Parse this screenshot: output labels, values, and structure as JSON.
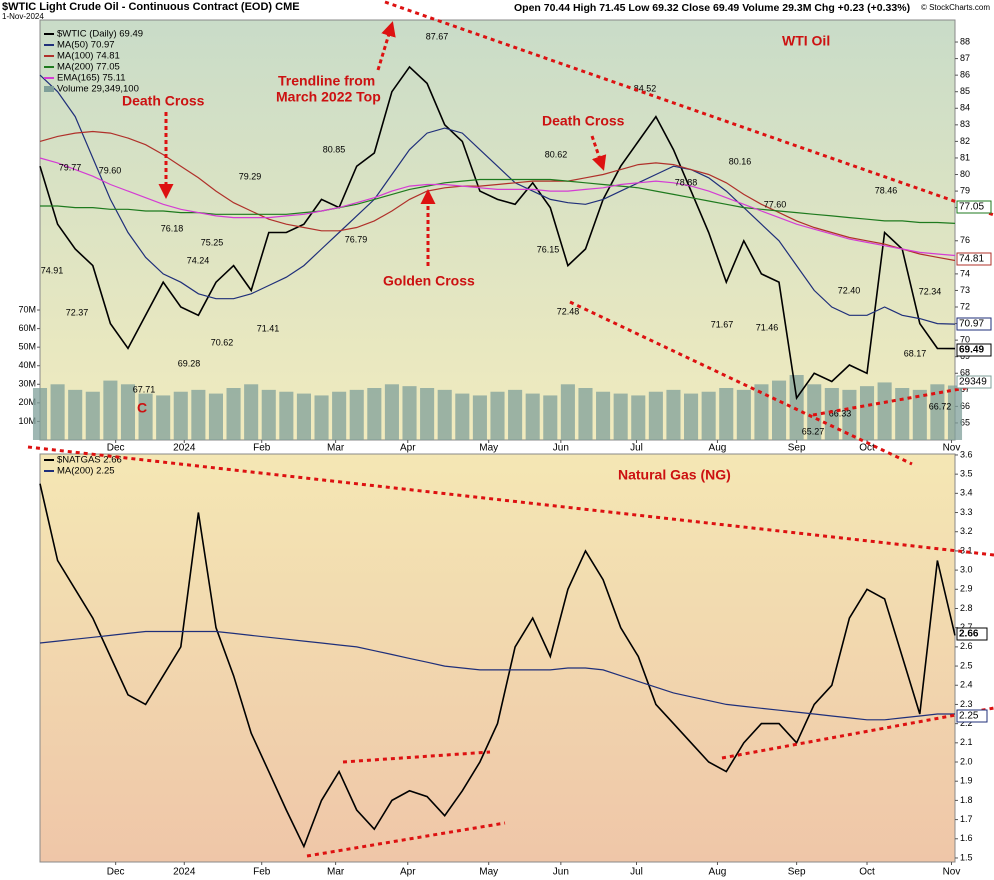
{
  "header": {
    "title": "$WTIC Light Crude Oil - Continuous Contract (EOD) CME",
    "date": "1-Nov-2024",
    "quote": "Open 70.44 High 71.45 Low 69.32 Close 69.49 Volume 29.3M Chg +0.23 (+0.33%)",
    "copyright": "© StockCharts.com"
  },
  "chart_data": [
    {
      "type": "line",
      "title": "WTI Oil",
      "xlim": [
        0,
        52
      ],
      "xticks": [
        {
          "value": 4.3,
          "label": "Dec"
        },
        {
          "value": 8.2,
          "label": "2024"
        },
        {
          "value": 12.6,
          "label": "Feb"
        },
        {
          "value": 16.8,
          "label": "Mar"
        },
        {
          "value": 20.9,
          "label": "Apr"
        },
        {
          "value": 25.5,
          "label": "May"
        },
        {
          "value": 29.6,
          "label": "Jun"
        },
        {
          "value": 33.9,
          "label": "Jul"
        },
        {
          "value": 38.5,
          "label": "Aug"
        },
        {
          "value": 43,
          "label": "Sep"
        },
        {
          "value": 47,
          "label": "Oct"
        },
        {
          "value": 51.8,
          "label": "Nov"
        }
      ],
      "ylim": [
        63.97,
        89.33
      ],
      "yticks": [
        65,
        66,
        67,
        68,
        69,
        70,
        71,
        72,
        73,
        74,
        76,
        78,
        79,
        80,
        81,
        82,
        83,
        84,
        85,
        86,
        87,
        88
      ],
      "y2lim": [
        0,
        226200000
      ],
      "y2ticks": [
        {
          "value": 10000000,
          "label": "10M"
        },
        {
          "value": 20000000,
          "label": "20M"
        },
        {
          "value": 30000000,
          "label": "30M"
        },
        {
          "value": 40000000,
          "label": "40M"
        },
        {
          "value": 50000000,
          "label": "50M"
        },
        {
          "value": 60000000,
          "label": "60M"
        },
        {
          "value": 70000000,
          "label": "70M"
        }
      ],
      "series": [
        {
          "name": "$WTIC (Daily) 69.49",
          "color": "#000000",
          "values": [
            80.5,
            77,
            75.5,
            74.5,
            71,
            69.5,
            71.5,
            73.5,
            72,
            71.5,
            73.5,
            74.5,
            73,
            76.5,
            76.5,
            77,
            78.5,
            78,
            80.5,
            81.3,
            85,
            86.5,
            85.5,
            83,
            82,
            79,
            78.5,
            78.2,
            79.5,
            78,
            74.5,
            75.5,
            78.5,
            80.5,
            82,
            83.5,
            81.5,
            79,
            76.5,
            73.5,
            76,
            74,
            73.5,
            66.5,
            68,
            67.5,
            68.5,
            68,
            76.5,
            75.5,
            71,
            69.5,
            69.49
          ]
        },
        {
          "name": "MA(50) 70.97",
          "color": "#1f2f7a",
          "values": [
            86,
            85,
            83.5,
            81,
            78.5,
            76.5,
            75,
            74,
            73.5,
            72.8,
            72.5,
            72.5,
            72.8,
            73.3,
            73.8,
            74.5,
            75.5,
            76.5,
            77.5,
            78.5,
            80,
            81.5,
            82.5,
            82.8,
            82.5,
            81.5,
            80.5,
            79.5,
            79,
            78.5,
            78.3,
            78.2,
            78.5,
            79,
            79.5,
            80,
            80.5,
            80.3,
            79.8,
            79,
            78,
            77,
            76,
            74.5,
            73,
            72,
            71.5,
            71.5,
            72,
            71.5,
            71.3,
            71,
            70.97
          ]
        },
        {
          "name": "MA(100) 74.81",
          "color": "#b0302a",
          "values": [
            82,
            82.3,
            82.5,
            82.6,
            82.5,
            82.2,
            81.8,
            81.2,
            80.5,
            79.8,
            79,
            78.3,
            77.8,
            77.3,
            77,
            76.8,
            76.6,
            76.6,
            76.8,
            77.2,
            77.8,
            78.5,
            79,
            79.2,
            79.3,
            79.3,
            79.4,
            79.5,
            79.6,
            79.6,
            79.6,
            79.8,
            80,
            80.3,
            80.6,
            80.7,
            80.6,
            80.3,
            80,
            79.5,
            78.8,
            78.2,
            77.7,
            77.2,
            76.8,
            76.5,
            76.2,
            76,
            75.8,
            75.5,
            75.2,
            75,
            74.81
          ]
        },
        {
          "name": "MA(200) 77.05",
          "color": "#1e7a1e",
          "values": [
            78.1,
            78.1,
            78,
            78,
            77.9,
            77.9,
            77.8,
            77.8,
            77.7,
            77.7,
            77.6,
            77.6,
            77.6,
            77.6,
            77.6,
            77.7,
            77.8,
            78,
            78.2,
            78.5,
            78.8,
            79.1,
            79.3,
            79.5,
            79.6,
            79.7,
            79.7,
            79.7,
            79.7,
            79.7,
            79.6,
            79.5,
            79.4,
            79.3,
            79.2,
            79,
            78.8,
            78.6,
            78.4,
            78.2,
            78,
            77.9,
            77.8,
            77.7,
            77.6,
            77.5,
            77.4,
            77.3,
            77.2,
            77.2,
            77.1,
            77.1,
            77.05
          ]
        },
        {
          "name": "EMA(165) 75.11",
          "color": "#d43cd4",
          "values": [
            81,
            80.7,
            80.3,
            79.9,
            79.4,
            79,
            78.6,
            78.2,
            77.9,
            77.7,
            77.5,
            77.4,
            77.4,
            77.4,
            77.5,
            77.6,
            77.8,
            78,
            78.3,
            78.6,
            79,
            79.3,
            79.4,
            79.4,
            79.3,
            79.2,
            79.1,
            79.1,
            79.1,
            79,
            79,
            79.1,
            79.2,
            79.4,
            79.5,
            79.6,
            79.5,
            79.3,
            79,
            78.6,
            78.2,
            77.8,
            77.4,
            77,
            76.7,
            76.4,
            76.1,
            75.9,
            75.7,
            75.5,
            75.3,
            75.2,
            75.11
          ]
        },
        {
          "name": "Volume 29,349,100",
          "color": "#7f9f99",
          "type": "bar",
          "axis": "y2",
          "values": [
            28000000,
            30000000,
            27000000,
            26000000,
            32000000,
            30000000,
            25000000,
            24000000,
            26000000,
            27000000,
            25000000,
            28000000,
            30000000,
            27000000,
            26000000,
            25000000,
            24000000,
            26000000,
            27000000,
            28000000,
            30000000,
            29000000,
            28000000,
            27000000,
            25000000,
            24000000,
            26000000,
            27000000,
            25000000,
            24000000,
            30000000,
            28000000,
            26000000,
            25000000,
            24000000,
            26000000,
            27000000,
            25000000,
            26000000,
            28000000,
            27000000,
            30000000,
            32000000,
            35000000,
            30000000,
            28000000,
            27000000,
            29000000,
            31000000,
            28000000,
            27000000,
            30000000,
            29349100
          ]
        }
      ],
      "volume_box_label": "29349",
      "annotations": [
        "Death Cross",
        "C",
        "Trendline from",
        "March 2022 Top",
        "Golden Cross",
        "Death Cross"
      ],
      "price_labels": [
        "79.77",
        "79.60",
        "74.91",
        "72.37",
        "76.18",
        "74.24",
        "75.25",
        "67.71",
        "69.28",
        "70.62",
        "79.29",
        "71.41",
        "80.85",
        "76.79",
        "87.67",
        "80.62",
        "76.15",
        "72.48",
        "84.52",
        "78.88",
        "80.16",
        "71.67",
        "77.60",
        "71.46",
        "65.27",
        "72.40",
        "66.33",
        "78.46",
        "72.34",
        "68.17",
        "66.72"
      ]
    },
    {
      "type": "line",
      "title": "Natural Gas (NG)",
      "xlim": [
        0,
        52
      ],
      "xticks": [
        {
          "value": 4.3,
          "label": "Dec"
        },
        {
          "value": 8.2,
          "label": "2024"
        },
        {
          "value": 12.6,
          "label": "Feb"
        },
        {
          "value": 16.8,
          "label": "Mar"
        },
        {
          "value": 20.9,
          "label": "Apr"
        },
        {
          "value": 25.5,
          "label": "May"
        },
        {
          "value": 29.6,
          "label": "Jun"
        },
        {
          "value": 33.9,
          "label": "Jul"
        },
        {
          "value": 38.5,
          "label": "Aug"
        },
        {
          "value": 43,
          "label": "Sep"
        },
        {
          "value": 47,
          "label": "Oct"
        },
        {
          "value": 51.8,
          "label": "Nov"
        }
      ],
      "ylim": [
        1.479,
        3.605
      ],
      "yticks": [
        1.5,
        1.6,
        1.7,
        1.8,
        1.9,
        {
          "value": 2,
          "label": "2.0"
        },
        2.1,
        2.2,
        2.3,
        2.4,
        2.5,
        2.6,
        2.7,
        2.8,
        2.9,
        {
          "value": 3,
          "label": "3.0"
        },
        3.1,
        3.2,
        3.3,
        3.4,
        3.5,
        3.6
      ],
      "series": [
        {
          "name": "$NATGAS 2.66",
          "color": "#000000",
          "values": [
            3.45,
            3.05,
            2.9,
            2.75,
            2.55,
            2.35,
            2.3,
            2.45,
            2.6,
            3.3,
            2.7,
            2.45,
            2.15,
            1.95,
            1.75,
            1.56,
            1.8,
            1.95,
            1.75,
            1.65,
            1.8,
            1.85,
            1.82,
            1.72,
            1.85,
            2.0,
            2.2,
            2.6,
            2.75,
            2.55,
            2.9,
            3.1,
            2.95,
            2.7,
            2.55,
            2.3,
            2.2,
            2.1,
            2.0,
            1.95,
            2.1,
            2.2,
            2.2,
            2.1,
            2.3,
            2.4,
            2.75,
            2.9,
            2.85,
            2.55,
            2.25,
            3.05,
            2.66
          ]
        },
        {
          "name": "MA(200) 2.25",
          "color": "#1f2f7a",
          "values": [
            2.62,
            2.63,
            2.64,
            2.65,
            2.66,
            2.67,
            2.68,
            2.68,
            2.68,
            2.68,
            2.68,
            2.67,
            2.66,
            2.65,
            2.64,
            2.63,
            2.62,
            2.61,
            2.6,
            2.58,
            2.56,
            2.54,
            2.52,
            2.5,
            2.49,
            2.48,
            2.48,
            2.48,
            2.48,
            2.48,
            2.49,
            2.49,
            2.48,
            2.45,
            2.42,
            2.39,
            2.36,
            2.34,
            2.32,
            2.3,
            2.29,
            2.28,
            2.27,
            2.26,
            2.25,
            2.24,
            2.23,
            2.22,
            2.22,
            2.23,
            2.24,
            2.25,
            2.25
          ]
        }
      ]
    }
  ]
}
